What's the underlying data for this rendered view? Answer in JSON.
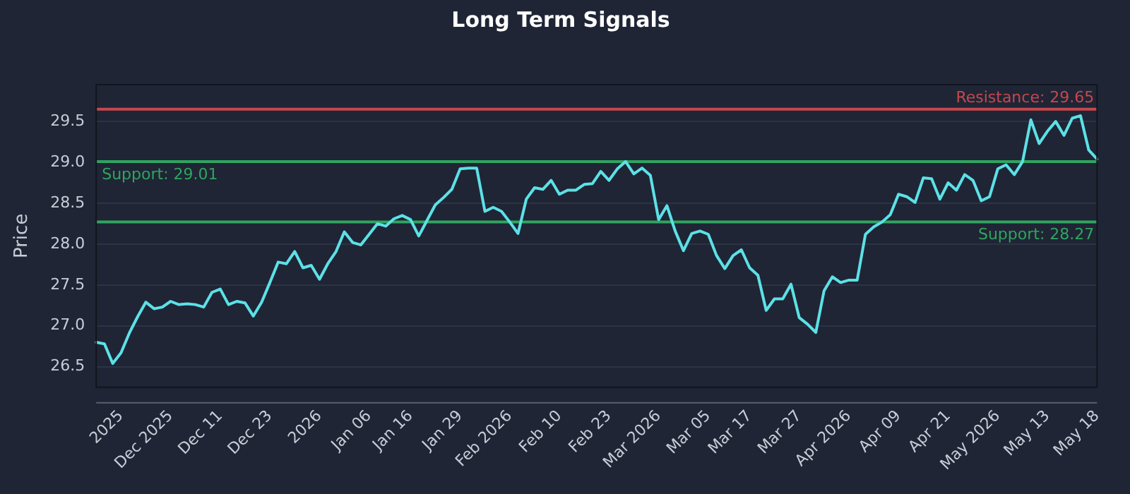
{
  "chart_data": {
    "type": "line",
    "title": "Long Term Signals",
    "ylabel": "Price",
    "categories": [
      null,
      null,
      null,
      "2025",
      null,
      null,
      null,
      null,
      null,
      "Dec 2025",
      null,
      null,
      null,
      null,
      null,
      "Dec 11",
      null,
      null,
      null,
      null,
      null,
      "Dec 23",
      null,
      null,
      null,
      null,
      null,
      "2026",
      null,
      null,
      null,
      null,
      null,
      "Jan 06",
      null,
      null,
      null,
      null,
      "Jan 16",
      null,
      null,
      null,
      null,
      null,
      "Jan 29",
      null,
      null,
      null,
      null,
      null,
      "Feb 2026",
      null,
      null,
      null,
      null,
      null,
      "Feb 10",
      null,
      null,
      null,
      null,
      null,
      "Feb 23",
      null,
      null,
      null,
      null,
      null,
      "Mar 2026",
      null,
      null,
      null,
      null,
      null,
      "Mar 05",
      null,
      null,
      null,
      null,
      "Mar 17",
      null,
      null,
      null,
      null,
      null,
      "Mar 27",
      null,
      null,
      null,
      null,
      null,
      "Apr 2026",
      null,
      null,
      null,
      null,
      null,
      "Apr 09",
      null,
      null,
      null,
      null,
      null,
      "Apr 21",
      null,
      null,
      null,
      null,
      null,
      "May 2026",
      null,
      null,
      null,
      null,
      null,
      "May 13",
      null,
      null,
      null,
      null,
      null,
      "May 18"
    ],
    "series": [
      {
        "color": "#5ce1e6",
        "values": [
          26.8,
          26.78,
          26.54,
          26.67,
          26.91,
          27.11,
          27.29,
          27.21,
          27.23,
          27.3,
          27.26,
          27.27,
          27.26,
          27.23,
          27.41,
          27.45,
          27.26,
          27.3,
          27.28,
          27.12,
          27.29,
          27.53,
          27.78,
          27.76,
          27.91,
          27.71,
          27.74,
          27.57,
          27.76,
          27.91,
          28.15,
          28.02,
          27.99,
          28.12,
          28.25,
          28.22,
          28.31,
          28.35,
          28.3,
          28.1,
          28.29,
          28.48,
          28.57,
          28.67,
          28.92,
          28.93,
          28.93,
          28.4,
          28.45,
          28.4,
          28.27,
          28.13,
          28.55,
          28.69,
          28.67,
          28.78,
          28.61,
          28.66,
          28.66,
          28.73,
          28.74,
          28.89,
          28.78,
          28.92,
          29.01,
          28.86,
          28.93,
          28.84,
          28.3,
          28.47,
          28.16,
          27.92,
          28.13,
          28.16,
          28.12,
          27.86,
          27.7,
          27.86,
          27.93,
          27.71,
          27.62,
          27.19,
          27.33,
          27.33,
          27.51,
          27.1,
          27.02,
          26.92,
          27.43,
          27.6,
          27.53,
          27.56,
          27.56,
          28.12,
          28.21,
          28.27,
          28.36,
          28.61,
          28.58,
          28.51,
          28.81,
          28.8,
          28.55,
          28.75,
          28.66,
          28.85,
          28.78,
          28.53,
          28.58,
          28.92,
          28.97,
          28.85,
          29.01,
          29.52,
          29.23,
          29.38,
          29.5,
          29.33,
          29.54,
          29.57,
          29.15,
          29.04
        ]
      }
    ],
    "ylim": [
      26.25,
      29.95
    ],
    "yticks": [
      26.5,
      {
        "value": 27,
        "label": "27.0"
      },
      27.5,
      {
        "value": 28,
        "label": "28.0"
      },
      28.5,
      {
        "value": 29,
        "label": "29.0"
      },
      29.5
    ],
    "ref_lines": [
      {
        "axis": "y",
        "value": 29.65,
        "label": "Resistance: 29.65",
        "color": "#c8474d"
      },
      {
        "axis": "y",
        "value": 29.01,
        "label": "Support: 29.01",
        "color": "#2fa55f"
      },
      {
        "axis": "y",
        "value": 28.27,
        "label": "Support: 28.27",
        "color": "#2fa55f"
      }
    ],
    "grid": "y",
    "legend": false,
    "marker": "none",
    "line_style": "solid"
  }
}
